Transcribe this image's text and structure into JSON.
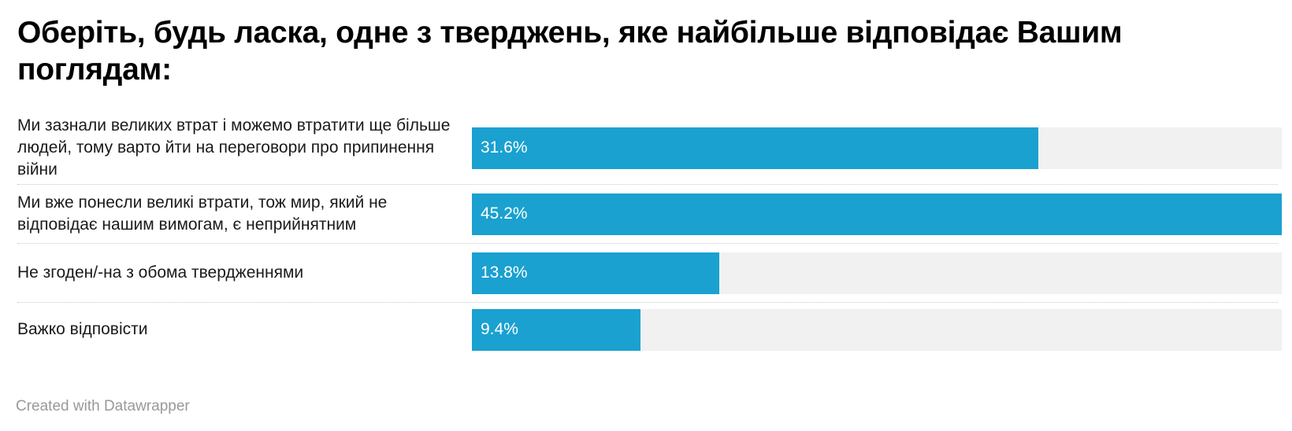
{
  "title": "Оберіть, будь ласка, одне з тверджень, яке найбільше відповідає Вашим поглядам:",
  "footer": "Created with Datawrapper",
  "colors": {
    "bar": "#1aa1d0",
    "track": "#f1f1f1"
  },
  "chart_data": {
    "type": "bar",
    "orientation": "horizontal",
    "title": "Оберіть, будь ласка, одне з тверджень, яке найбільше відповідає Вашим поглядам:",
    "categories": [
      "Ми зазнали великих втрат і можемо втратити ще більше людей, тому варто йти на переговори про припинення війни",
      "Ми вже понесли великі втрати, тож мир, який не відповідає нашим вимогам, є неприйнятним",
      "Не згоден/-на з обома твердженнями",
      "Важко відповісти"
    ],
    "values": [
      31.6,
      45.2,
      13.8,
      9.4
    ],
    "value_labels": [
      "31.6%",
      "45.2%",
      "13.8%",
      "9.4%"
    ],
    "xlim": [
      0,
      45.2
    ],
    "unit": "%",
    "grid": false,
    "legend": "none"
  }
}
